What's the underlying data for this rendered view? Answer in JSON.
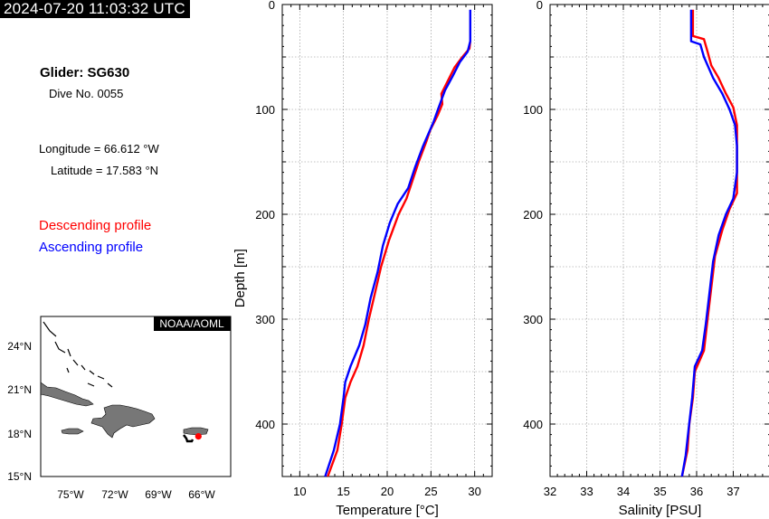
{
  "header": {
    "timestamp": "2024-07-20 11:03:32 UTC",
    "glider": "Glider: SG630",
    "dive": "Dive No. 0055",
    "longitude": "Longitude = 66.612 °W",
    "latitude": "Latitude = 17.583 °N"
  },
  "legend": {
    "descending": "Descending profile",
    "ascending": "Ascending profile"
  },
  "colors": {
    "descending": "#ff0000",
    "ascending": "#0000ff"
  },
  "map": {
    "credit": "NOAA/AOML",
    "lat_ticks": [
      "24°N",
      "21°N",
      "18°N",
      "15°N"
    ],
    "lon_ticks": [
      "75°W",
      "72°W",
      "69°W",
      "66°W"
    ],
    "glider_position": {
      "lon": -66.612,
      "lat": 17.583
    }
  },
  "chart_data": [
    {
      "type": "line",
      "xlabel": "Temperature [°C]",
      "ylabel": "Depth [m]",
      "xlim": [
        8,
        32
      ],
      "ylim": [
        0,
        450
      ],
      "y_inverted": true,
      "x_ticks": [
        10,
        15,
        20,
        25,
        30
      ],
      "y_ticks": [
        0,
        100,
        200,
        300,
        400
      ],
      "grid": true,
      "series": [
        {
          "name": "Descending profile",
          "points": [
            [
              29.5,
              35
            ],
            [
              29.4,
              42
            ],
            [
              28.6,
              50
            ],
            [
              27.7,
              60
            ],
            [
              26.8,
              75
            ],
            [
              26.2,
              85
            ],
            [
              26.3,
              95
            ],
            [
              25.8,
              105
            ],
            [
              24.9,
              120
            ],
            [
              24.5,
              130
            ],
            [
              23.6,
              150
            ],
            [
              22.8,
              170
            ],
            [
              22.2,
              185
            ],
            [
              21.3,
              200
            ],
            [
              20.2,
              225
            ],
            [
              19.3,
              250
            ],
            [
              18.6,
              275
            ],
            [
              17.9,
              300
            ],
            [
              17.3,
              325
            ],
            [
              16.6,
              345
            ],
            [
              15.8,
              360
            ],
            [
              15.2,
              375
            ],
            [
              14.8,
              400
            ],
            [
              14.3,
              425
            ],
            [
              13.2,
              450
            ]
          ]
        },
        {
          "name": "Ascending profile",
          "points": [
            [
              29.5,
              5
            ],
            [
              29.5,
              35
            ],
            [
              29.2,
              45
            ],
            [
              28.3,
              55
            ],
            [
              27.5,
              68
            ],
            [
              26.6,
              82
            ],
            [
              25.8,
              100
            ],
            [
              25.3,
              112
            ],
            [
              24.1,
              135
            ],
            [
              23.2,
              155
            ],
            [
              22.4,
              175
            ],
            [
              21.2,
              190
            ],
            [
              20.3,
              208
            ],
            [
              19.5,
              230
            ],
            [
              18.9,
              255
            ],
            [
              18.1,
              280
            ],
            [
              17.5,
              305
            ],
            [
              16.8,
              325
            ],
            [
              15.8,
              345
            ],
            [
              15.2,
              360
            ],
            [
              15.0,
              375
            ],
            [
              14.6,
              400
            ],
            [
              13.9,
              425
            ],
            [
              12.9,
              450
            ]
          ]
        }
      ]
    },
    {
      "type": "line",
      "xlabel": "Salinity [PSU]",
      "ylabel": "",
      "xlim": [
        32,
        38
      ],
      "ylim": [
        0,
        450
      ],
      "y_inverted": true,
      "x_ticks": [
        32,
        33,
        34,
        35,
        36,
        37
      ],
      "y_ticks": [
        0,
        100,
        200,
        300,
        400
      ],
      "grid": true,
      "series": [
        {
          "name": "Descending profile",
          "points": [
            [
              35.9,
              5
            ],
            [
              35.9,
              30
            ],
            [
              36.2,
              33
            ],
            [
              36.3,
              45
            ],
            [
              36.4,
              58
            ],
            [
              36.6,
              70
            ],
            [
              36.8,
              85
            ],
            [
              37.0,
              98
            ],
            [
              37.1,
              115
            ],
            [
              37.1,
              140
            ],
            [
              37.1,
              165
            ],
            [
              37.1,
              180
            ],
            [
              36.9,
              195
            ],
            [
              36.7,
              215
            ],
            [
              36.5,
              240
            ],
            [
              36.4,
              270
            ],
            [
              36.3,
              300
            ],
            [
              36.2,
              330
            ],
            [
              35.95,
              350
            ],
            [
              35.9,
              375
            ],
            [
              35.8,
              400
            ],
            [
              35.75,
              425
            ],
            [
              35.6,
              450
            ]
          ]
        },
        {
          "name": "Ascending profile",
          "points": [
            [
              35.85,
              5
            ],
            [
              35.85,
              35
            ],
            [
              36.1,
              38
            ],
            [
              36.2,
              50
            ],
            [
              36.45,
              70
            ],
            [
              36.7,
              85
            ],
            [
              36.9,
              100
            ],
            [
              37.05,
              115
            ],
            [
              37.1,
              135
            ],
            [
              37.1,
              160
            ],
            [
              37.0,
              185
            ],
            [
              36.8,
              200
            ],
            [
              36.6,
              220
            ],
            [
              36.45,
              245
            ],
            [
              36.35,
              275
            ],
            [
              36.25,
              305
            ],
            [
              36.15,
              330
            ],
            [
              35.95,
              345
            ],
            [
              35.88,
              375
            ],
            [
              35.78,
              405
            ],
            [
              35.7,
              430
            ],
            [
              35.6,
              450
            ]
          ]
        }
      ]
    }
  ]
}
